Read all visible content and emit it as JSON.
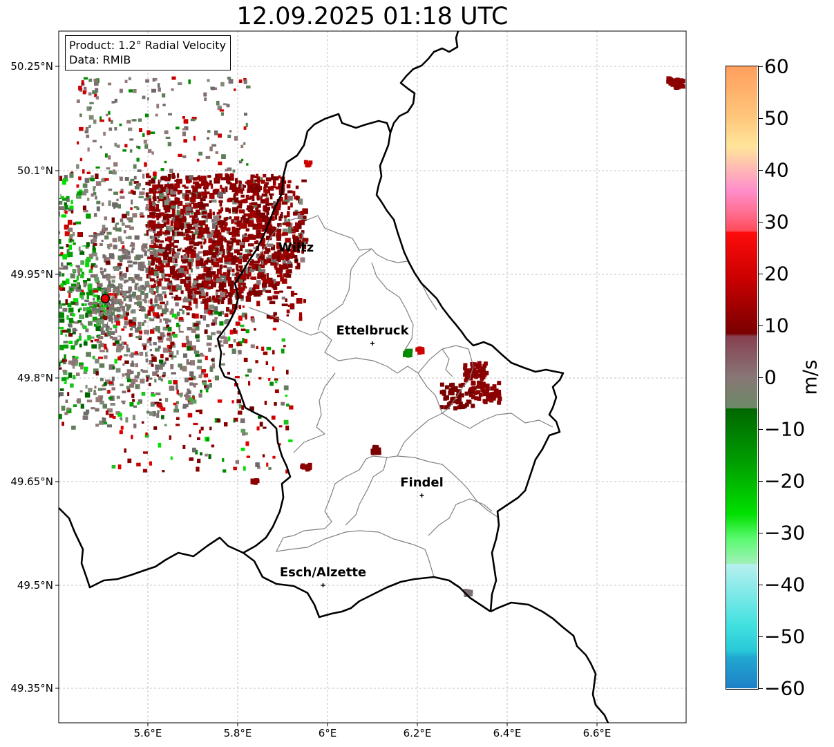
{
  "title": "12.09.2025 01:18 UTC",
  "info": {
    "product": "Product: 1.2° Radial Velocity",
    "data_source": "Data: RMIB"
  },
  "lat_ticks": [
    "50.25°N",
    "50.1°N",
    "49.95°N",
    "49.8°N",
    "49.65°N",
    "49.5°N",
    "49.35°N"
  ],
  "lon_ticks": [
    "5.6°E",
    "5.8°E",
    "6°E",
    "6.2°E",
    "6.4°E",
    "6.6°E"
  ],
  "cities": [
    {
      "name": "Wiltz",
      "lon": 5.93,
      "lat": 49.97
    },
    {
      "name": "Ettelbruck",
      "lon": 6.1,
      "lat": 49.85
    },
    {
      "name": "Findel",
      "lon": 6.21,
      "lat": 49.63
    },
    {
      "name": "Esch/Alzette",
      "lon": 5.99,
      "lat": 49.5
    }
  ],
  "radar_site": {
    "lon": 5.505,
    "lat": 49.915
  },
  "colorbar": {
    "unit": "m/s",
    "ticks": [
      "60",
      "50",
      "40",
      "30",
      "20",
      "10",
      "0",
      "−10",
      "−20",
      "−30",
      "−40",
      "−50",
      "−60"
    ],
    "range": [
      -60,
      60
    ]
  },
  "colors": {
    "inbound_dark": "#7a0000",
    "outbound_green": "#008a00",
    "near_zero": "#8a7272",
    "border": "#000000",
    "canton": "#808080"
  }
}
